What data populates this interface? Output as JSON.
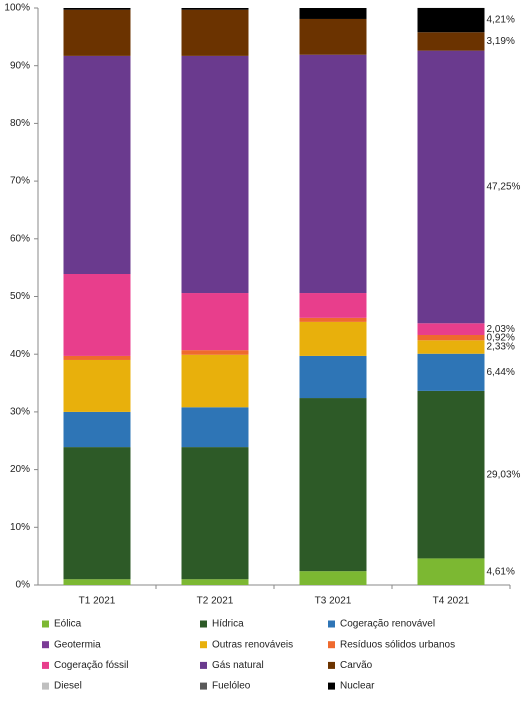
{
  "chart_data": {
    "type": "stacked_bar",
    "categories": [
      "T1 2021",
      "T2 2021",
      "T3 2021",
      "T4 2021"
    ],
    "ylim": [
      0,
      100
    ],
    "yticks": [
      {
        "value": 0,
        "label": "0%"
      },
      {
        "value": 10,
        "label": "10%"
      },
      {
        "value": 20,
        "label": "20%"
      },
      {
        "value": 30,
        "label": "30%"
      },
      {
        "value": 40,
        "label": "40%"
      },
      {
        "value": 50,
        "label": "50%"
      },
      {
        "value": 60,
        "label": "60%"
      },
      {
        "value": 70,
        "label": "70%"
      },
      {
        "value": 80,
        "label": "80%"
      },
      {
        "value": 90,
        "label": "90%"
      },
      {
        "value": 100,
        "label": "100%"
      }
    ],
    "series": [
      {
        "name": "Eólica",
        "color": "#7cb832",
        "values": [
          1.0,
          1.0,
          2.4,
          4.61
        ],
        "value_labels": [
          null,
          null,
          null,
          "4,61%"
        ]
      },
      {
        "name": "Hídrica",
        "color": "#2d5a27",
        "values": [
          22.9,
          22.9,
          30.0,
          29.03
        ],
        "value_labels": [
          null,
          null,
          null,
          "29,03%"
        ]
      },
      {
        "name": "Cogeração renovável",
        "color": "#2e75b6",
        "values": [
          6.1,
          6.9,
          7.3,
          6.44
        ],
        "value_labels": [
          null,
          null,
          null,
          "6,44%"
        ]
      },
      {
        "name": "Geotermia",
        "color": "#7b3b96",
        "values": [
          0,
          0,
          0,
          0
        ]
      },
      {
        "name": "Outras renováveis",
        "color": "#e8b00c",
        "values": [
          9.0,
          9.1,
          5.9,
          2.33
        ],
        "value_labels": [
          null,
          null,
          null,
          "2,33%"
        ]
      },
      {
        "name": "Resíduos sólidos urbanos",
        "color": "#ef6a2e",
        "values": [
          0.7,
          0.8,
          0.7,
          0.92
        ],
        "value_labels": [
          null,
          null,
          null,
          "0,92%"
        ]
      },
      {
        "name": "Cogeração fóssil",
        "color": "#e83e8c",
        "values": [
          14.2,
          9.9,
          4.3,
          2.03
        ],
        "value_labels": [
          null,
          null,
          null,
          "2,03%"
        ]
      },
      {
        "name": "Gás natural",
        "color": "#6a3a8e",
        "values": [
          37.8,
          41.1,
          41.3,
          47.25
        ],
        "value_labels": [
          null,
          null,
          null,
          "47,25%"
        ]
      },
      {
        "name": "Carvão",
        "color": "#6b3300",
        "values": [
          8.0,
          8.0,
          6.2,
          3.19
        ],
        "value_labels": [
          null,
          null,
          null,
          "3,19%"
        ]
      },
      {
        "name": "Diesel",
        "color": "#bfbfbf",
        "values": [
          0,
          0,
          0,
          0
        ]
      },
      {
        "name": "Fuelóleo",
        "color": "#595959",
        "values": [
          0,
          0,
          0,
          0
        ]
      },
      {
        "name": "Nuclear",
        "color": "#000000",
        "values": [
          0.3,
          0.3,
          1.9,
          4.21
        ],
        "value_labels": [
          null,
          null,
          null,
          "4,21%"
        ]
      }
    ]
  }
}
